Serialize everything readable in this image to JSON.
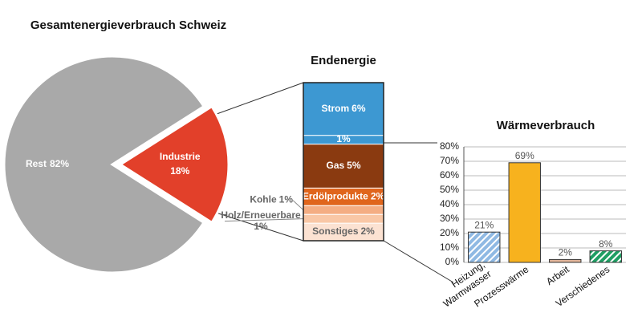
{
  "chart_data": [
    {
      "type": "pie",
      "title": "Gesamtenergieverbrauch Schweiz",
      "categories": [
        "Rest",
        "Industrie"
      ],
      "values": [
        82,
        18
      ],
      "value_labels": [
        "82%",
        "18%"
      ],
      "colors": [
        "#a9a9a9",
        "#e2402a"
      ],
      "explode": [
        false,
        true
      ]
    },
    {
      "type": "stacked-bar",
      "title": "Endenergie",
      "series": [
        {
          "name": "Sonstiges",
          "color": "#fce2d2",
          "values": [
            2
          ],
          "value_labels": [
            "2%"
          ],
          "label_color": "#666666"
        },
        {
          "name": "Holz/Erneuerbare",
          "color": "#f9c7a6",
          "values": [
            1
          ],
          "value_labels": [
            "1%"
          ],
          "label_position": "outside",
          "label_color": "#666666"
        },
        {
          "name": "Kohle",
          "color": "#f4ad83",
          "values": [
            1
          ],
          "value_labels": [
            "1%"
          ],
          "label_position": "outside",
          "label_color": "#666666"
        },
        {
          "name": "Erdölprodukte",
          "color": "#e0651c",
          "values": [
            2
          ],
          "value_labels": [
            "2%"
          ],
          "label_color": "#ffffff"
        },
        {
          "name": "Gas",
          "color": "#8a3a10",
          "values": [
            5
          ],
          "value_labels": [
            "5%"
          ],
          "label_color": "#ffffff"
        },
        {
          "name": null,
          "color": "#3d98d2",
          "values": [
            1
          ],
          "value_labels": [
            "1%"
          ],
          "label_color": "#ffffff"
        },
        {
          "name": "Strom",
          "color": "#3d98d2",
          "values": [
            6
          ],
          "value_labels": [
            "6%"
          ],
          "label_color": "#ffffff"
        }
      ]
    },
    {
      "type": "bar",
      "title": "Wärmeverbrauch",
      "categories": [
        "Heizung,\nWarmwasser",
        "Prozesswärme",
        "Arbeit",
        "Verschiedenes"
      ],
      "values": [
        21,
        69,
        2,
        8
      ],
      "value_labels": [
        "21%",
        "69%",
        "2%",
        "8%"
      ],
      "colors": [
        "#8fb9e3",
        "#f7b21e",
        "#e0b49a",
        "#1f9e63"
      ],
      "hatched": [
        true,
        false,
        false,
        true
      ],
      "ylim": [
        0,
        80
      ],
      "yticks": [
        {
          "value": 0,
          "label": "0%"
        },
        {
          "value": 10,
          "label": "10%"
        },
        {
          "value": 20,
          "label": "20%"
        },
        {
          "value": 30,
          "label": "30%"
        },
        {
          "value": 40,
          "label": "40%"
        },
        {
          "value": 50,
          "label": "50%"
        },
        {
          "value": 60,
          "label": "60%"
        },
        {
          "value": 70,
          "label": "70%"
        },
        {
          "value": 80,
          "label": "80%"
        }
      ],
      "grid": true
    }
  ]
}
